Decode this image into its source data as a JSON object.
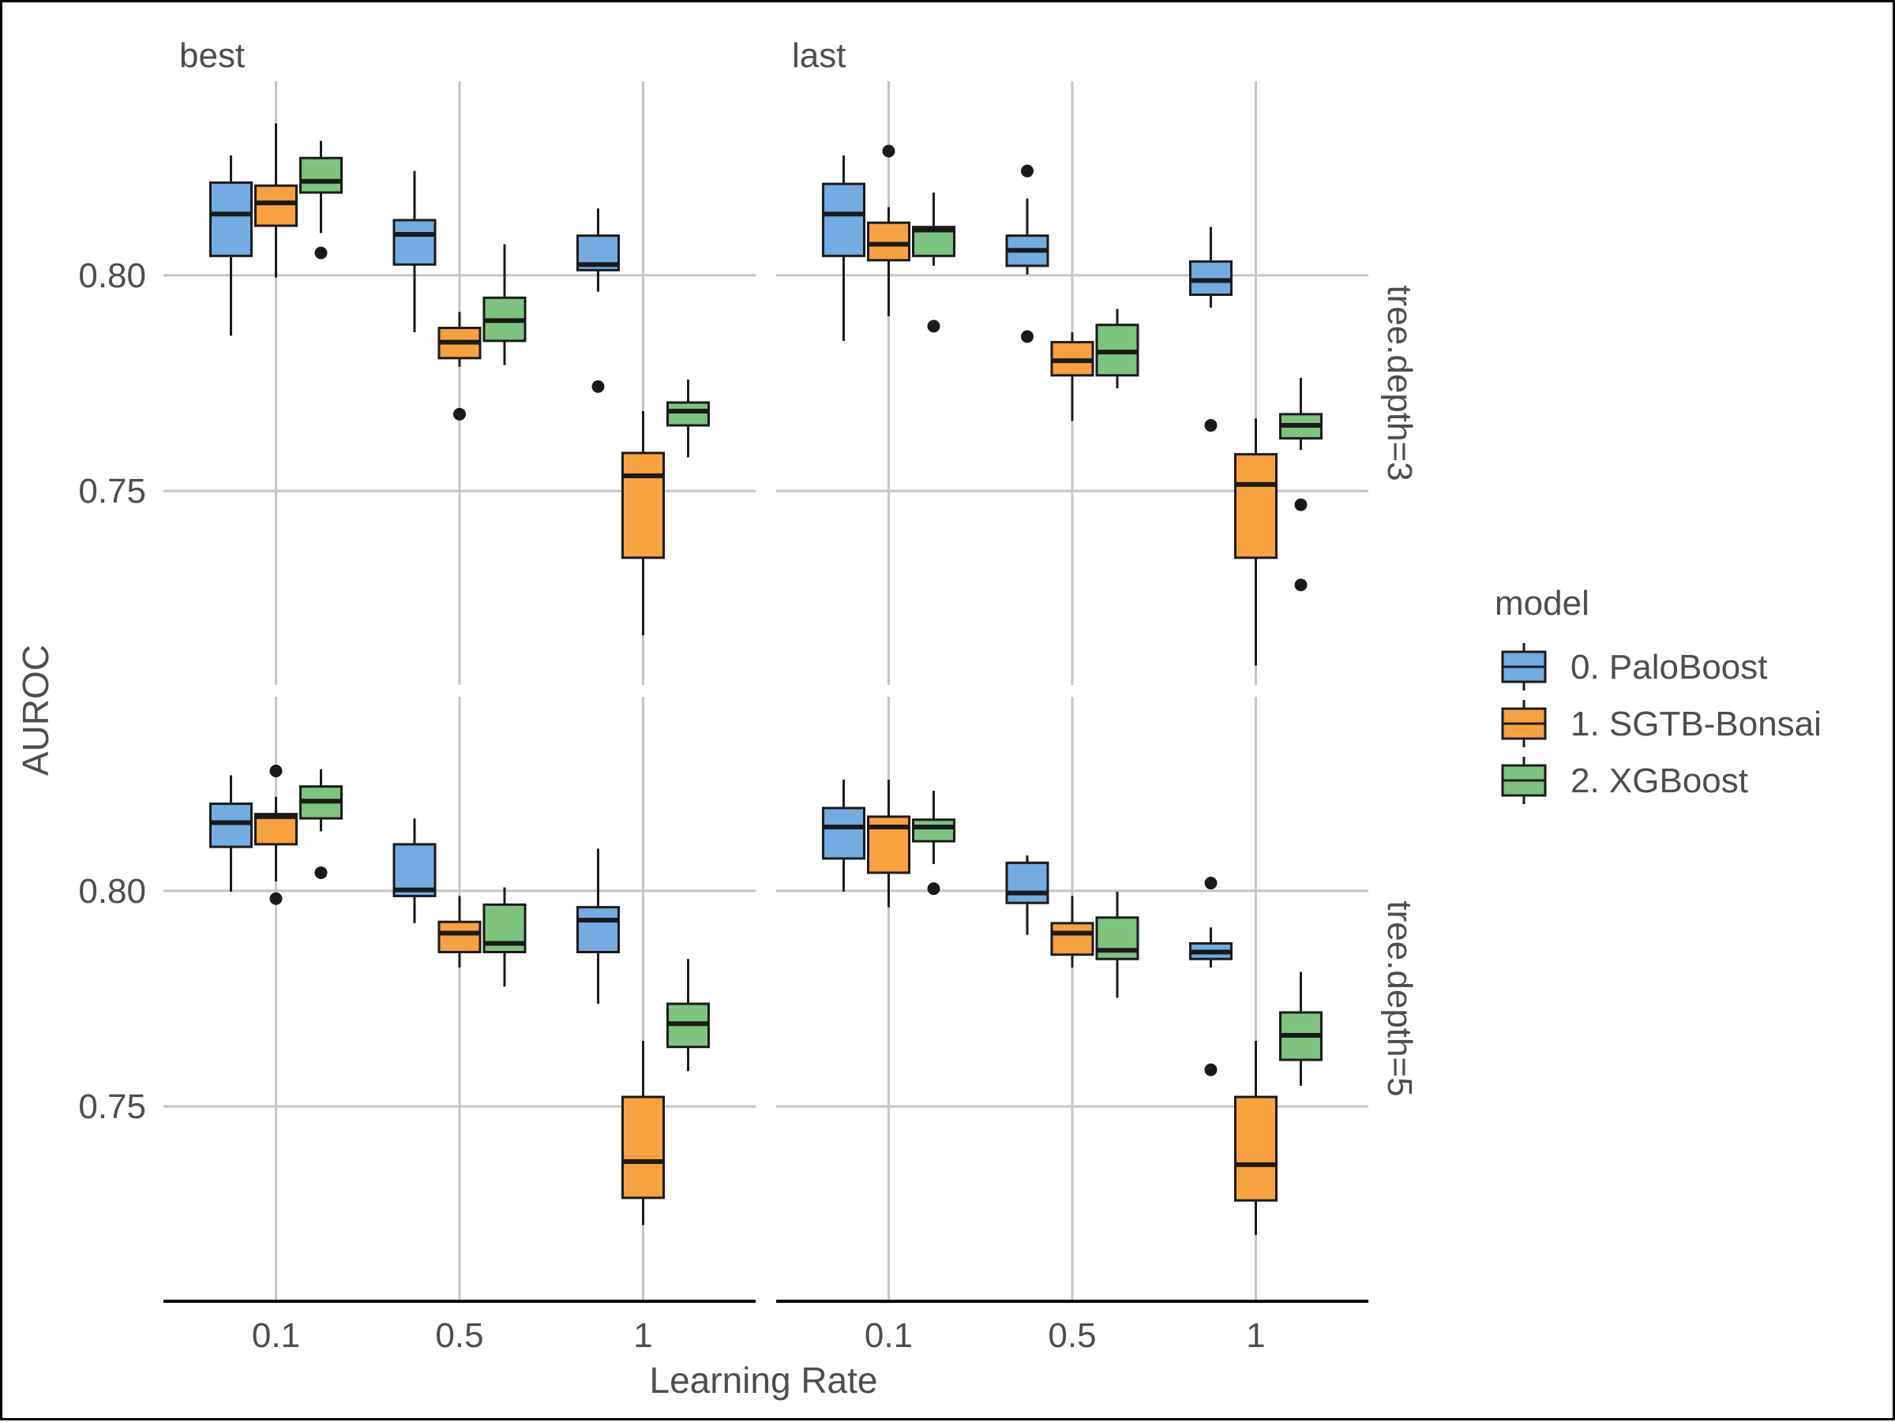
{
  "chart_data": {
    "type": "boxplot",
    "xlabel": "Learning Rate",
    "ylabel": "AUROC",
    "x_categories": [
      "0.1",
      "0.5",
      "1"
    ],
    "y_ticks": [
      "0.75",
      "0.80"
    ],
    "ylim": [
      0.705,
      0.845
    ],
    "column_facets": [
      "best",
      "last"
    ],
    "row_facets": [
      "tree.depth=3",
      "tree.depth=5"
    ],
    "legend": {
      "title": "model",
      "position": "right",
      "entries": [
        {
          "name": "0. PaloBoost",
          "color": "#72ace0"
        },
        {
          "name": "1. SGTB-Bonsai",
          "color": "#f8a13f"
        },
        {
          "name": "2. XGBoost",
          "color": "#7dc47f"
        }
      ]
    },
    "grid": true,
    "panels": [
      {
        "col": "best",
        "row": "tree.depth=3",
        "boxes": [
          {
            "lr": "0.1",
            "model": "0. PaloBoost",
            "whisker_low": 0.786,
            "q1": 0.8045,
            "median": 0.8142,
            "q3": 0.8215,
            "whisker_high": 0.8278,
            "outliers": []
          },
          {
            "lr": "0.1",
            "model": "1. SGTB-Bonsai",
            "whisker_low": 0.7995,
            "q1": 0.8115,
            "median": 0.8168,
            "q3": 0.8208,
            "whisker_high": 0.8352,
            "outliers": []
          },
          {
            "lr": "0.1",
            "model": "2. XGBoost",
            "whisker_low": 0.8098,
            "q1": 0.8192,
            "median": 0.8218,
            "q3": 0.8272,
            "whisker_high": 0.8312,
            "outliers": [
              0.8052
            ]
          },
          {
            "lr": "0.5",
            "model": "0. PaloBoost",
            "whisker_low": 0.7868,
            "q1": 0.8025,
            "median": 0.8095,
            "q3": 0.8128,
            "whisker_high": 0.8242,
            "outliers": []
          },
          {
            "lr": "0.5",
            "model": "1. SGTB-Bonsai",
            "whisker_low": 0.7788,
            "q1": 0.7808,
            "median": 0.7845,
            "q3": 0.7878,
            "whisker_high": 0.7915,
            "outliers": [
              0.7678
            ]
          },
          {
            "lr": "0.5",
            "model": "2. XGBoost",
            "whisker_low": 0.7792,
            "q1": 0.7848,
            "median": 0.7895,
            "q3": 0.7948,
            "whisker_high": 0.8072,
            "outliers": []
          },
          {
            "lr": "1",
            "model": "0. PaloBoost",
            "whisker_low": 0.7962,
            "q1": 0.8012,
            "median": 0.8025,
            "q3": 0.8092,
            "whisker_high": 0.8155,
            "outliers": [
              0.7742
            ]
          },
          {
            "lr": "1",
            "model": "1. SGTB-Bonsai",
            "whisker_low": 0.7165,
            "q1": 0.7345,
            "median": 0.7535,
            "q3": 0.7588,
            "whisker_high": 0.7685,
            "outliers": []
          },
          {
            "lr": "1",
            "model": "2. XGBoost",
            "whisker_low": 0.7578,
            "q1": 0.7652,
            "median": 0.7685,
            "q3": 0.7705,
            "whisker_high": 0.7758,
            "outliers": []
          }
        ]
      },
      {
        "col": "last",
        "row": "tree.depth=3",
        "boxes": [
          {
            "lr": "0.1",
            "model": "0. PaloBoost",
            "whisker_low": 0.7848,
            "q1": 0.8045,
            "median": 0.8142,
            "q3": 0.8212,
            "whisker_high": 0.8278,
            "outliers": []
          },
          {
            "lr": "0.1",
            "model": "1. SGTB-Bonsai",
            "whisker_low": 0.7905,
            "q1": 0.8035,
            "median": 0.8072,
            "q3": 0.8122,
            "whisker_high": 0.8158,
            "outliers": [
              0.8288
            ]
          },
          {
            "lr": "0.1",
            "model": "2. XGBoost",
            "whisker_low": 0.8022,
            "q1": 0.8045,
            "median": 0.8105,
            "q3": 0.8112,
            "whisker_high": 0.8192,
            "outliers": [
              0.7882
            ]
          },
          {
            "lr": "0.5",
            "model": "0. PaloBoost",
            "whisker_low": 0.8002,
            "q1": 0.8022,
            "median": 0.8058,
            "q3": 0.8092,
            "whisker_high": 0.8178,
            "outliers": [
              0.8242,
              0.7858
            ]
          },
          {
            "lr": "0.5",
            "model": "1. SGTB-Bonsai",
            "whisker_low": 0.7662,
            "q1": 0.7768,
            "median": 0.7802,
            "q3": 0.7845,
            "whisker_high": 0.7868,
            "outliers": []
          },
          {
            "lr": "0.5",
            "model": "2. XGBoost",
            "whisker_low": 0.7738,
            "q1": 0.7768,
            "median": 0.7822,
            "q3": 0.7885,
            "whisker_high": 0.7922,
            "outliers": []
          },
          {
            "lr": "1",
            "model": "0. PaloBoost",
            "whisker_low": 0.7925,
            "q1": 0.7955,
            "median": 0.7988,
            "q3": 0.8032,
            "whisker_high": 0.8112,
            "outliers": [
              0.7652
            ]
          },
          {
            "lr": "1",
            "model": "1. SGTB-Bonsai",
            "whisker_low": 0.7095,
            "q1": 0.7345,
            "median": 0.7515,
            "q3": 0.7585,
            "whisker_high": 0.7668,
            "outliers": []
          },
          {
            "lr": "1",
            "model": "2. XGBoost",
            "whisker_low": 0.7595,
            "q1": 0.7622,
            "median": 0.7652,
            "q3": 0.7678,
            "whisker_high": 0.7762,
            "outliers": [
              0.7468,
              0.7282
            ]
          }
        ]
      },
      {
        "col": "best",
        "row": "tree.depth=5",
        "boxes": [
          {
            "lr": "0.1",
            "model": "0. PaloBoost",
            "whisker_low": 0.7998,
            "q1": 0.8102,
            "median": 0.8158,
            "q3": 0.8202,
            "whisker_high": 0.8268,
            "outliers": []
          },
          {
            "lr": "0.1",
            "model": "1. SGTB-Bonsai",
            "whisker_low": 0.8022,
            "q1": 0.8108,
            "median": 0.8172,
            "q3": 0.8178,
            "whisker_high": 0.8218,
            "outliers": [
              0.8278,
              0.7982
            ]
          },
          {
            "lr": "0.1",
            "model": "2. XGBoost",
            "whisker_low": 0.8138,
            "q1": 0.8168,
            "median": 0.8208,
            "q3": 0.8242,
            "whisker_high": 0.8282,
            "outliers": [
              0.8042
            ]
          },
          {
            "lr": "0.5",
            "model": "0. PaloBoost",
            "whisker_low": 0.7925,
            "q1": 0.7988,
            "median": 0.8002,
            "q3": 0.8108,
            "whisker_high": 0.8168,
            "outliers": []
          },
          {
            "lr": "0.5",
            "model": "1. SGTB-Bonsai",
            "whisker_low": 0.7822,
            "q1": 0.7858,
            "median": 0.7902,
            "q3": 0.7928,
            "whisker_high": 0.7988,
            "outliers": []
          },
          {
            "lr": "0.5",
            "model": "2. XGBoost",
            "whisker_low": 0.7778,
            "q1": 0.7858,
            "median": 0.7878,
            "q3": 0.7968,
            "whisker_high": 0.8008,
            "outliers": []
          },
          {
            "lr": "1",
            "model": "0. PaloBoost",
            "whisker_low": 0.7738,
            "q1": 0.7858,
            "median": 0.7932,
            "q3": 0.7962,
            "whisker_high": 0.8098,
            "outliers": []
          },
          {
            "lr": "1",
            "model": "1. SGTB-Bonsai",
            "whisker_low": 0.7225,
            "q1": 0.7288,
            "median": 0.7372,
            "q3": 0.7522,
            "whisker_high": 0.7652,
            "outliers": []
          },
          {
            "lr": "1",
            "model": "2. XGBoost",
            "whisker_low": 0.7582,
            "q1": 0.7638,
            "median": 0.7692,
            "q3": 0.7738,
            "whisker_high": 0.7842,
            "outliers": []
          }
        ]
      },
      {
        "col": "last",
        "row": "tree.depth=5",
        "boxes": [
          {
            "lr": "0.1",
            "model": "0. PaloBoost",
            "whisker_low": 0.7998,
            "q1": 0.8075,
            "median": 0.8148,
            "q3": 0.8192,
            "whisker_high": 0.8258,
            "outliers": []
          },
          {
            "lr": "0.1",
            "model": "1. SGTB-Bonsai",
            "whisker_low": 0.7962,
            "q1": 0.8042,
            "median": 0.8148,
            "q3": 0.8172,
            "whisker_high": 0.8258,
            "outliers": []
          },
          {
            "lr": "0.1",
            "model": "2. XGBoost",
            "whisker_low": 0.8062,
            "q1": 0.8115,
            "median": 0.8148,
            "q3": 0.8165,
            "whisker_high": 0.8232,
            "outliers": [
              0.8005
            ]
          },
          {
            "lr": "0.5",
            "model": "0. PaloBoost",
            "whisker_low": 0.7898,
            "q1": 0.7972,
            "median": 0.7995,
            "q3": 0.8065,
            "whisker_high": 0.8082,
            "outliers": []
          },
          {
            "lr": "0.5",
            "model": "1. SGTB-Bonsai",
            "whisker_low": 0.7822,
            "q1": 0.7852,
            "median": 0.7902,
            "q3": 0.7925,
            "whisker_high": 0.7988,
            "outliers": []
          },
          {
            "lr": "0.5",
            "model": "2. XGBoost",
            "whisker_low": 0.7752,
            "q1": 0.7842,
            "median": 0.7862,
            "q3": 0.7938,
            "whisker_high": 0.7998,
            "outliers": []
          },
          {
            "lr": "1",
            "model": "0. PaloBoost",
            "whisker_low": 0.7822,
            "q1": 0.7842,
            "median": 0.7858,
            "q3": 0.7878,
            "whisker_high": 0.7915,
            "outliers": [
              0.8018,
              0.7585
            ]
          },
          {
            "lr": "1",
            "model": "1. SGTB-Bonsai",
            "whisker_low": 0.7202,
            "q1": 0.7282,
            "median": 0.7365,
            "q3": 0.7522,
            "whisker_high": 0.7652,
            "outliers": []
          },
          {
            "lr": "1",
            "model": "2. XGBoost",
            "whisker_low": 0.7548,
            "q1": 0.7608,
            "median": 0.7665,
            "q3": 0.7718,
            "whisker_high": 0.7812,
            "outliers": []
          }
        ]
      }
    ]
  }
}
